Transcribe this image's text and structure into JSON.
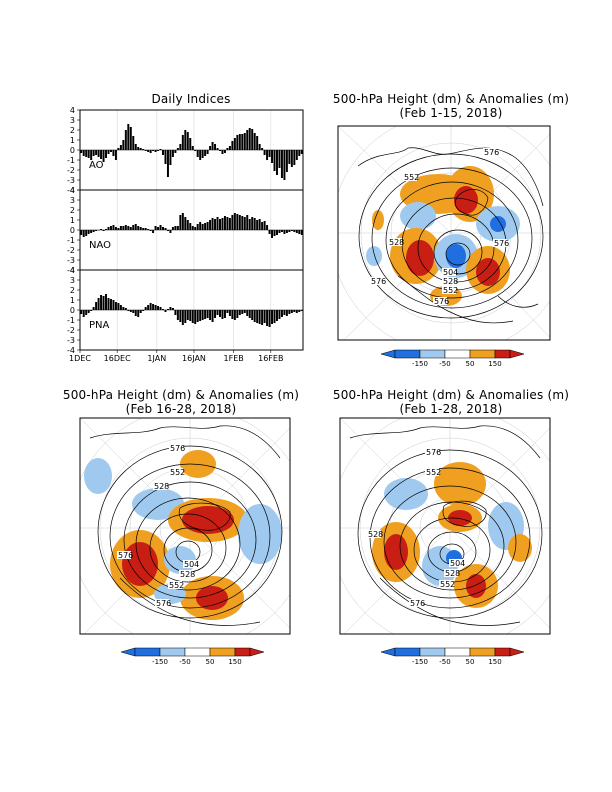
{
  "indices": {
    "title": "Daily Indices",
    "x_ticks": [
      "1DEC",
      "16DEC",
      "1JAN",
      "16JAN",
      "1FEB",
      "16FEB"
    ],
    "y_ticks": [
      "4",
      "3",
      "2",
      "1",
      "0",
      "-1",
      "-2",
      "-3",
      "-4"
    ]
  },
  "maps": [
    {
      "title": "500-hPa Height (dm) & Anomalies (m)",
      "subtitle": "(Feb 1-15, 2018)",
      "contour_labels": [
        "576",
        "552",
        "528",
        "576",
        "576",
        "504",
        "528",
        "552",
        "576"
      ]
    },
    {
      "title": "500-hPa Height (dm) & Anomalies (m)",
      "subtitle": "(Feb 16-28, 2018)",
      "contour_labels": [
        "576",
        "552",
        "528",
        "576",
        "504",
        "528",
        "552",
        "576"
      ]
    },
    {
      "title": "500-hPa Height (dm) & Anomalies (m)",
      "subtitle": "(Feb 1-28, 2018)",
      "contour_labels": [
        "576",
        "552",
        "528",
        "504",
        "528",
        "552",
        "576"
      ]
    }
  ],
  "colorbar_labels": [
    "-150",
    "-50",
    "50",
    "150"
  ],
  "colors": {
    "strong_neg": "#1f6fe0",
    "neg": "#9fc9ee",
    "pos": "#f0a020",
    "strong_pos": "#c81e14"
  },
  "chart_data": {
    "type": "bar",
    "x_start": "1DEC",
    "x_end": "28FEB",
    "ylim": [
      -4,
      4
    ],
    "series": [
      {
        "name": "AO",
        "values": [
          -0.3,
          -0.6,
          -0.7,
          -0.8,
          -1.0,
          -0.6,
          -0.5,
          -0.7,
          -0.9,
          -1.2,
          -0.8,
          -0.4,
          -0.2,
          -0.6,
          -1.0,
          0.2,
          0.5,
          1.0,
          2.0,
          2.6,
          2.3,
          1.4,
          0.6,
          0.3,
          0.2,
          0.1,
          -0.1,
          -0.2,
          -0.3,
          -0.1,
          -0.2,
          -0.1,
          0.1,
          -0.5,
          -1.4,
          -2.7,
          -1.5,
          -0.7,
          -0.3,
          0.2,
          0.6,
          1.5,
          2.0,
          1.8,
          1.2,
          0.4,
          -0.1,
          -0.7,
          -1.0,
          -0.8,
          -0.6,
          -0.4,
          0.4,
          0.8,
          0.6,
          0.2,
          -0.1,
          -0.4,
          -0.3,
          0.2,
          0.4,
          0.9,
          1.2,
          1.5,
          1.6,
          1.6,
          1.7,
          2.0,
          2.2,
          2.1,
          1.7,
          1.4,
          0.6,
          0.2,
          -0.5,
          -1.0,
          -0.7,
          -1.3,
          -2.1,
          -2.5,
          -1.8,
          -2.8,
          -3.0,
          -2.2,
          -1.4,
          -1.7,
          -1.5,
          -1.0,
          -0.6,
          -0.4
        ]
      },
      {
        "name": "NAO",
        "values": [
          -0.5,
          -0.7,
          -0.6,
          -0.4,
          -0.3,
          -0.2,
          -0.1,
          0.0,
          0.1,
          -0.1,
          0.1,
          0.3,
          0.4,
          0.5,
          0.3,
          0.2,
          0.4,
          0.4,
          0.5,
          0.4,
          0.3,
          0.5,
          0.6,
          0.4,
          0.3,
          0.2,
          0.2,
          0.1,
          -0.1,
          -0.3,
          0.4,
          0.3,
          0.5,
          0.3,
          0.2,
          -0.1,
          -0.3,
          0.3,
          0.4,
          0.4,
          1.5,
          1.7,
          1.3,
          1.0,
          0.7,
          0.4,
          0.3,
          0.6,
          0.8,
          0.6,
          0.7,
          0.8,
          1.0,
          1.2,
          1.1,
          1.3,
          1.1,
          1.2,
          1.4,
          1.3,
          1.2,
          1.5,
          1.7,
          1.6,
          1.5,
          1.4,
          1.3,
          1.5,
          1.1,
          1.3,
          1.2,
          1.0,
          1.1,
          0.8,
          0.9,
          0.5,
          -0.4,
          -0.8,
          -0.6,
          -0.5,
          -0.3,
          -0.2,
          -0.4,
          -0.3,
          -0.2,
          -0.1,
          -0.2,
          -0.3,
          -0.4,
          -0.5
        ]
      },
      {
        "name": "PNA",
        "values": [
          -0.4,
          -0.7,
          -0.5,
          -0.3,
          -0.1,
          0.3,
          0.8,
          1.2,
          1.5,
          1.4,
          1.6,
          1.2,
          1.1,
          1.0,
          0.8,
          0.7,
          0.5,
          0.3,
          0.2,
          -0.1,
          -0.2,
          -0.3,
          -0.6,
          -0.7,
          -0.3,
          -0.1,
          0.3,
          0.5,
          0.7,
          0.6,
          0.5,
          0.4,
          0.3,
          0.1,
          -0.2,
          0.1,
          0.3,
          0.2,
          -0.5,
          -1.0,
          -1.2,
          -1.5,
          -1.3,
          -1.0,
          -1.1,
          -1.3,
          -1.4,
          -1.2,
          -1.1,
          -1.0,
          -0.9,
          -0.8,
          -1.0,
          -1.2,
          -0.8,
          -0.5,
          -0.7,
          -0.9,
          -0.8,
          -0.3,
          -0.6,
          -0.9,
          -1.0,
          -0.8,
          -0.5,
          -0.4,
          -0.3,
          -0.6,
          -0.8,
          -1.0,
          -1.2,
          -1.3,
          -1.4,
          -1.5,
          -1.3,
          -1.6,
          -1.7,
          -1.4,
          -1.3,
          -1.1,
          -0.9,
          -0.7,
          -0.5,
          -0.6,
          -0.4,
          -0.3,
          -0.2,
          -0.3,
          -0.2,
          -0.1
        ]
      }
    ]
  }
}
